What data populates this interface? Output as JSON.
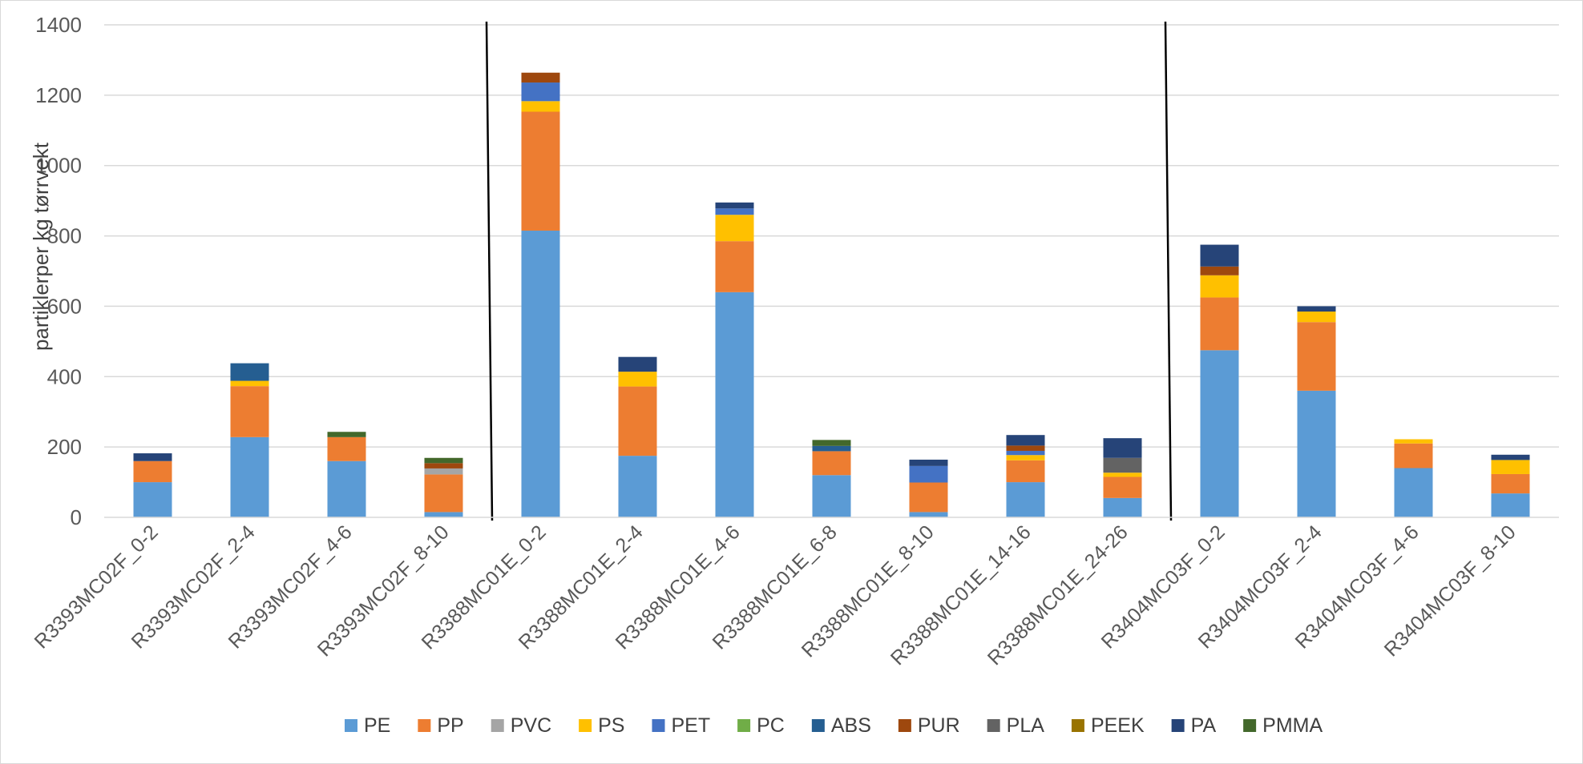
{
  "chart_data": {
    "type": "bar",
    "stacked": true,
    "title": "",
    "xlabel": "",
    "ylabel": "partiklerper kg tørrvekt",
    "ylim": [
      0,
      1400
    ],
    "yticks": [
      0,
      200,
      400,
      600,
      800,
      1000,
      1200,
      1400
    ],
    "grid": true,
    "legend_position": "bottom",
    "group_separators_after_index": [
      3,
      10
    ],
    "categories": [
      "R3393MC02F_0-2",
      "R3393MC02F_2-4",
      "R3393MC02F_4-6",
      "R3393MC02F_8-10",
      "R3388MC01E_0-2",
      "R3388MC01E_2-4",
      "R3388MC01E_4-6",
      "R3388MC01E_6-8",
      "R3388MC01E_8-10",
      "R3388MC01E_14-16",
      "R3388MC01E_24-26",
      "R3404MC03F_0-2",
      "R3404MC03F_2-4",
      "R3404MC03F_4-6",
      "R3404MC03F_8-10"
    ],
    "series": [
      {
        "name": "PE",
        "color": "#5b9bd5",
        "values": [
          100,
          228,
          160,
          15,
          815,
          175,
          640,
          120,
          15,
          100,
          55,
          475,
          360,
          140,
          68
        ]
      },
      {
        "name": "PP",
        "color": "#ed7d31",
        "values": [
          60,
          145,
          68,
          107,
          338,
          197,
          145,
          68,
          84,
          62,
          60,
          150,
          195,
          70,
          55
        ]
      },
      {
        "name": "PVC",
        "color": "#a5a5a5",
        "values": [
          0,
          0,
          0,
          17,
          0,
          0,
          0,
          0,
          0,
          0,
          0,
          0,
          0,
          0,
          0
        ]
      },
      {
        "name": "PS",
        "color": "#ffc000",
        "values": [
          0,
          15,
          0,
          0,
          30,
          42,
          75,
          0,
          0,
          15,
          12,
          63,
          30,
          12,
          40
        ]
      },
      {
        "name": "PET",
        "color": "#4472c4",
        "values": [
          0,
          0,
          0,
          0,
          53,
          0,
          18,
          0,
          47,
          12,
          0,
          0,
          0,
          0,
          0
        ]
      },
      {
        "name": "PC",
        "color": "#70ad47",
        "values": [
          0,
          0,
          0,
          0,
          0,
          0,
          0,
          0,
          0,
          0,
          0,
          0,
          0,
          0,
          0
        ]
      },
      {
        "name": "ABS",
        "color": "#255e91",
        "values": [
          0,
          50,
          0,
          0,
          0,
          0,
          0,
          15,
          0,
          0,
          0,
          0,
          0,
          0,
          0
        ]
      },
      {
        "name": "PUR",
        "color": "#9e480e",
        "values": [
          0,
          0,
          0,
          15,
          28,
          0,
          0,
          0,
          0,
          15,
          0,
          25,
          0,
          0,
          0
        ]
      },
      {
        "name": "PLA",
        "color": "#636363",
        "values": [
          0,
          0,
          0,
          0,
          0,
          0,
          0,
          0,
          0,
          0,
          42,
          0,
          0,
          0,
          0
        ]
      },
      {
        "name": "PEEK",
        "color": "#997300",
        "values": [
          0,
          0,
          0,
          0,
          0,
          0,
          0,
          0,
          0,
          0,
          0,
          0,
          0,
          0,
          0
        ]
      },
      {
        "name": "PA",
        "color": "#264478",
        "values": [
          22,
          0,
          0,
          0,
          0,
          42,
          17,
          0,
          18,
          30,
          56,
          62,
          15,
          0,
          15
        ]
      },
      {
        "name": "PMMA",
        "color": "#43682b",
        "values": [
          0,
          0,
          15,
          15,
          0,
          0,
          0,
          17,
          0,
          0,
          0,
          0,
          0,
          0,
          0
        ]
      }
    ]
  }
}
